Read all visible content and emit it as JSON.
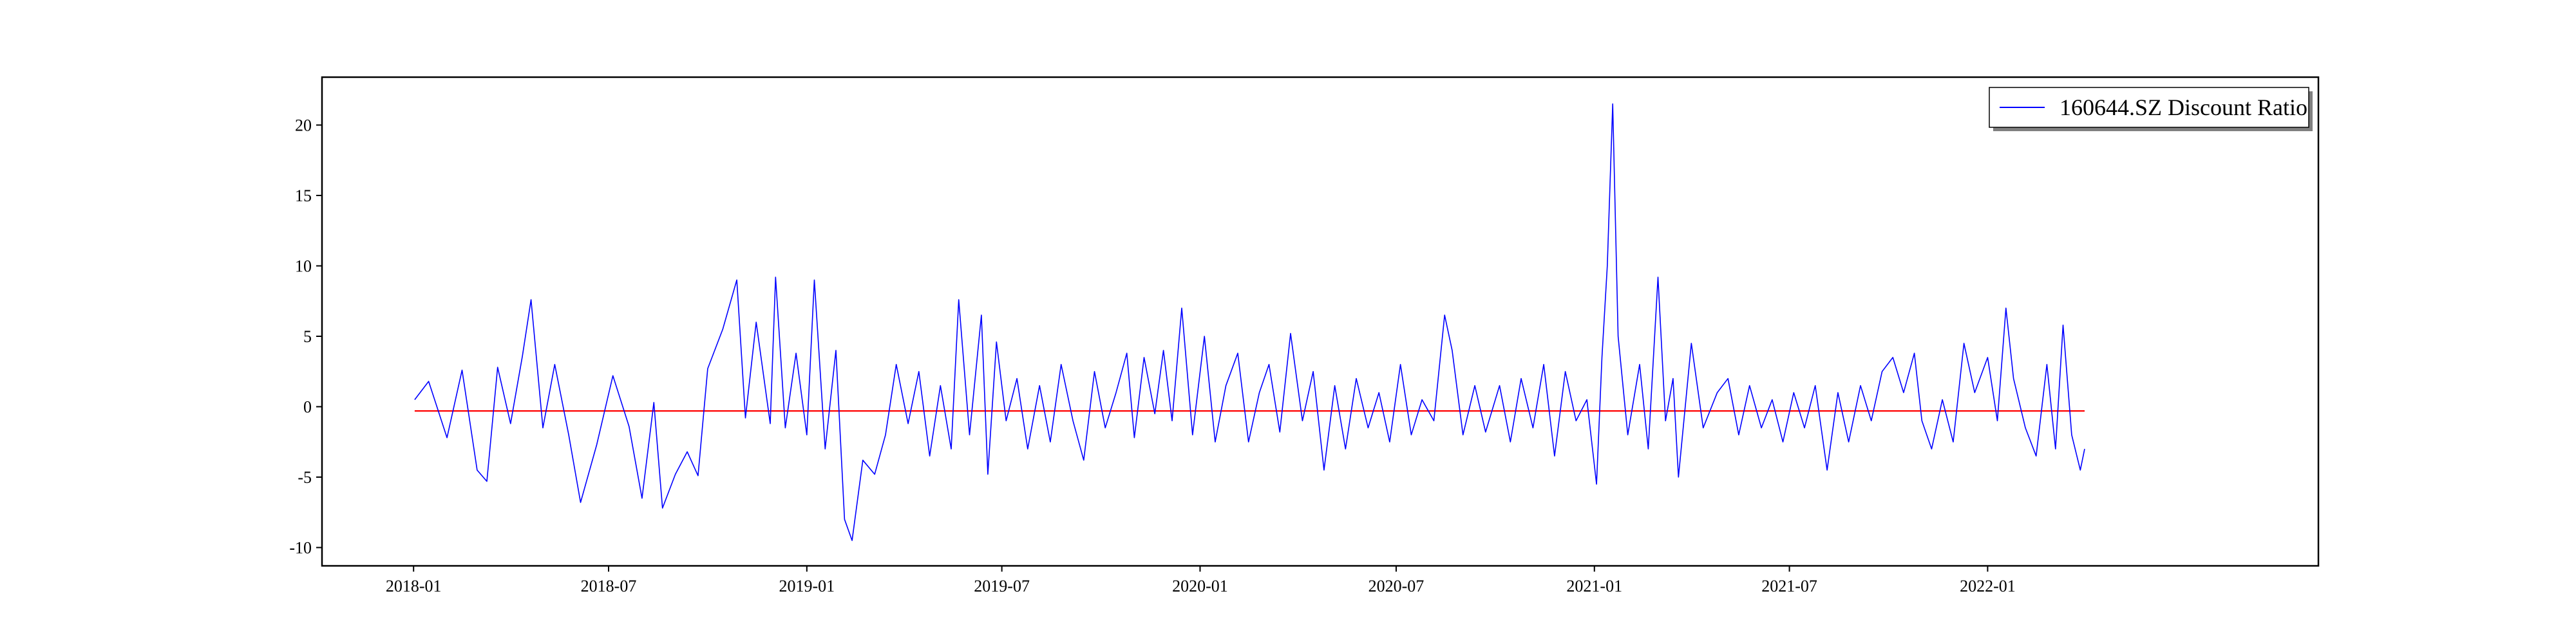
{
  "chart_data": {
    "type": "line",
    "title": "",
    "xlabel": "",
    "ylabel": "",
    "x_tick_labels": [
      "2018-01",
      "2018-07",
      "2019-01",
      "2019-07",
      "2020-01",
      "2020-07",
      "2021-01",
      "2021-07",
      "2022-01"
    ],
    "y_ticks": [
      -10,
      -5,
      0,
      5,
      10,
      15,
      20
    ],
    "xlim": [
      "2017-10-08",
      "2022-11-04"
    ],
    "ylim": [
      -11.3,
      23.4
    ],
    "grid": false,
    "legend_position": "top-right",
    "series": [
      {
        "name": "160644.SZ Discount Ratio",
        "color": "#0000ff",
        "points": [
          [
            "2018-01-02",
            0.5
          ],
          [
            "2018-01-15",
            1.8
          ],
          [
            "2018-02-01",
            -2.2
          ],
          [
            "2018-02-15",
            2.6
          ],
          [
            "2018-03-01",
            -4.5
          ],
          [
            "2018-03-10",
            -5.3
          ],
          [
            "2018-03-20",
            2.8
          ],
          [
            "2018-04-01",
            -1.2
          ],
          [
            "2018-04-12",
            3.6
          ],
          [
            "2018-04-20",
            7.6
          ],
          [
            "2018-05-01",
            -1.5
          ],
          [
            "2018-05-12",
            3.0
          ],
          [
            "2018-05-25",
            -2.0
          ],
          [
            "2018-06-05",
            -6.8
          ],
          [
            "2018-06-20",
            -2.7
          ],
          [
            "2018-07-05",
            2.2
          ],
          [
            "2018-07-20",
            -1.4
          ],
          [
            "2018-08-01",
            -6.5
          ],
          [
            "2018-08-12",
            0.3
          ],
          [
            "2018-08-20",
            -7.2
          ],
          [
            "2018-09-01",
            -4.8
          ],
          [
            "2018-09-12",
            -3.2
          ],
          [
            "2018-09-22",
            -4.9
          ],
          [
            "2018-10-01",
            2.7
          ],
          [
            "2018-10-15",
            5.5
          ],
          [
            "2018-10-28",
            9.0
          ],
          [
            "2018-11-05",
            -0.8
          ],
          [
            "2018-11-15",
            6.0
          ],
          [
            "2018-11-28",
            -1.2
          ],
          [
            "2018-12-03",
            9.2
          ],
          [
            "2018-12-12",
            -1.5
          ],
          [
            "2018-12-22",
            3.8
          ],
          [
            "2019-01-01",
            -2.0
          ],
          [
            "2019-01-08",
            9.0
          ],
          [
            "2019-01-18",
            -3.0
          ],
          [
            "2019-01-28",
            4.0
          ],
          [
            "2019-02-05",
            -8.0
          ],
          [
            "2019-02-12",
            -9.5
          ],
          [
            "2019-02-22",
            -3.8
          ],
          [
            "2019-03-05",
            -4.8
          ],
          [
            "2019-03-15",
            -2.0
          ],
          [
            "2019-03-25",
            3.0
          ],
          [
            "2019-04-05",
            -1.2
          ],
          [
            "2019-04-15",
            2.5
          ],
          [
            "2019-04-25",
            -3.5
          ],
          [
            "2019-05-05",
            1.5
          ],
          [
            "2019-05-15",
            -3.0
          ],
          [
            "2019-05-22",
            7.6
          ],
          [
            "2019-06-01",
            -2.0
          ],
          [
            "2019-06-12",
            6.5
          ],
          [
            "2019-06-18",
            -4.8
          ],
          [
            "2019-06-26",
            4.6
          ],
          [
            "2019-07-05",
            -1.0
          ],
          [
            "2019-07-15",
            2.0
          ],
          [
            "2019-07-25",
            -3.0
          ],
          [
            "2019-08-05",
            1.5
          ],
          [
            "2019-08-15",
            -2.5
          ],
          [
            "2019-08-25",
            3.0
          ],
          [
            "2019-09-05",
            -1.0
          ],
          [
            "2019-09-15",
            -3.8
          ],
          [
            "2019-09-25",
            2.5
          ],
          [
            "2019-10-05",
            -1.5
          ],
          [
            "2019-10-15",
            1.0
          ],
          [
            "2019-10-25",
            3.8
          ],
          [
            "2019-11-01",
            -2.2
          ],
          [
            "2019-11-10",
            3.5
          ],
          [
            "2019-11-20",
            -0.5
          ],
          [
            "2019-11-28",
            4.0
          ],
          [
            "2019-12-06",
            -1.0
          ],
          [
            "2019-12-15",
            7.0
          ],
          [
            "2019-12-25",
            -2.0
          ],
          [
            "2020-01-05",
            5.0
          ],
          [
            "2020-01-15",
            -2.5
          ],
          [
            "2020-01-25",
            1.5
          ],
          [
            "2020-02-05",
            3.8
          ],
          [
            "2020-02-15",
            -2.5
          ],
          [
            "2020-02-25",
            1.0
          ],
          [
            "2020-03-05",
            3.0
          ],
          [
            "2020-03-15",
            -1.8
          ],
          [
            "2020-03-25",
            5.2
          ],
          [
            "2020-04-05",
            -1.0
          ],
          [
            "2020-04-15",
            2.5
          ],
          [
            "2020-04-25",
            -4.5
          ],
          [
            "2020-05-05",
            1.5
          ],
          [
            "2020-05-15",
            -3.0
          ],
          [
            "2020-05-25",
            2.0
          ],
          [
            "2020-06-05",
            -1.5
          ],
          [
            "2020-06-15",
            1.0
          ],
          [
            "2020-06-25",
            -2.5
          ],
          [
            "2020-07-05",
            3.0
          ],
          [
            "2020-07-15",
            -2.0
          ],
          [
            "2020-07-25",
            0.5
          ],
          [
            "2020-08-05",
            -1.0
          ],
          [
            "2020-08-15",
            6.5
          ],
          [
            "2020-08-22",
            4.0
          ],
          [
            "2020-09-01",
            -2.0
          ],
          [
            "2020-09-12",
            1.5
          ],
          [
            "2020-09-22",
            -1.8
          ],
          [
            "2020-10-05",
            1.5
          ],
          [
            "2020-10-15",
            -2.5
          ],
          [
            "2020-10-25",
            2.0
          ],
          [
            "2020-11-05",
            -1.5
          ],
          [
            "2020-11-15",
            3.0
          ],
          [
            "2020-11-25",
            -3.5
          ],
          [
            "2020-12-05",
            2.5
          ],
          [
            "2020-12-15",
            -1.0
          ],
          [
            "2020-12-25",
            0.5
          ],
          [
            "2021-01-03",
            -5.5
          ],
          [
            "2021-01-08",
            3.5
          ],
          [
            "2021-01-13",
            10.0
          ],
          [
            "2021-01-18",
            21.5
          ],
          [
            "2021-01-23",
            5.0
          ],
          [
            "2021-02-01",
            -2.0
          ],
          [
            "2021-02-12",
            3.0
          ],
          [
            "2021-02-20",
            -3.0
          ],
          [
            "2021-03-01",
            9.2
          ],
          [
            "2021-03-08",
            -1.0
          ],
          [
            "2021-03-15",
            2.0
          ],
          [
            "2021-03-20",
            -5.0
          ],
          [
            "2021-04-01",
            4.5
          ],
          [
            "2021-04-12",
            -1.5
          ],
          [
            "2021-04-25",
            1.0
          ],
          [
            "2021-05-05",
            2.0
          ],
          [
            "2021-05-15",
            -2.0
          ],
          [
            "2021-05-25",
            1.5
          ],
          [
            "2021-06-05",
            -1.5
          ],
          [
            "2021-06-15",
            0.5
          ],
          [
            "2021-06-25",
            -2.5
          ],
          [
            "2021-07-05",
            1.0
          ],
          [
            "2021-07-15",
            -1.5
          ],
          [
            "2021-07-25",
            1.5
          ],
          [
            "2021-08-05",
            -4.5
          ],
          [
            "2021-08-15",
            1.0
          ],
          [
            "2021-08-25",
            -2.5
          ],
          [
            "2021-09-05",
            1.5
          ],
          [
            "2021-09-15",
            -1.0
          ],
          [
            "2021-09-25",
            2.5
          ],
          [
            "2021-10-05",
            3.5
          ],
          [
            "2021-10-15",
            1.0
          ],
          [
            "2021-10-25",
            3.8
          ],
          [
            "2021-11-01",
            -1.0
          ],
          [
            "2021-11-10",
            -3.0
          ],
          [
            "2021-11-20",
            0.5
          ],
          [
            "2021-11-30",
            -2.5
          ],
          [
            "2021-12-10",
            4.5
          ],
          [
            "2021-12-20",
            1.0
          ],
          [
            "2022-01-01",
            3.5
          ],
          [
            "2022-01-10",
            -1.0
          ],
          [
            "2022-01-18",
            7.0
          ],
          [
            "2022-01-25",
            2.0
          ],
          [
            "2022-02-05",
            -1.5
          ],
          [
            "2022-02-15",
            -3.5
          ],
          [
            "2022-02-25",
            3.0
          ],
          [
            "2022-03-05",
            -3.0
          ],
          [
            "2022-03-12",
            5.8
          ],
          [
            "2022-03-20",
            -2.0
          ],
          [
            "2022-03-28",
            -4.5
          ],
          [
            "2022-04-01",
            -3.0
          ]
        ]
      },
      {
        "name": "",
        "color": "#ff0000",
        "points": [
          [
            "2018-01-02",
            -0.3
          ],
          [
            "2022-04-01",
            -0.3
          ]
        ]
      }
    ]
  }
}
